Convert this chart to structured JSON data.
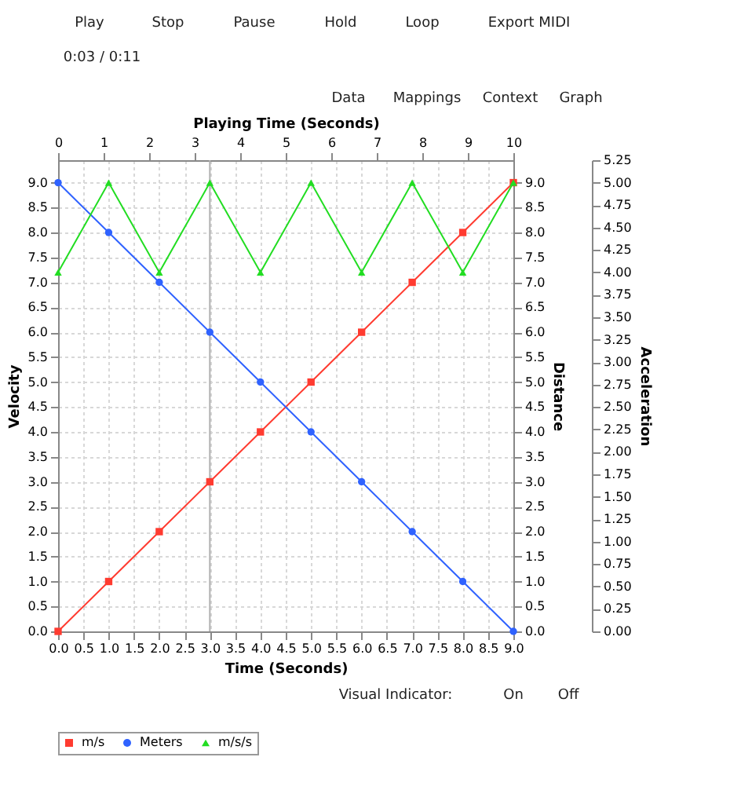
{
  "chart_data": {
    "type": "line",
    "xlabel": "Time (Seconds)",
    "x2label": "Playing Time (Seconds)",
    "ylabel": "Velocity",
    "y2label": "Distance",
    "y3label": "Acceleration",
    "x": [
      0,
      1,
      2,
      3,
      4,
      5,
      6,
      7,
      8,
      9
    ],
    "series": [
      {
        "name": "m/s",
        "color": "#ff3b30",
        "marker": "square",
        "values": [
          0,
          1,
          2,
          3,
          4,
          5,
          6,
          7,
          8,
          9
        ]
      },
      {
        "name": "Meters",
        "color": "#2f62ff",
        "marker": "circle",
        "axis": "y2",
        "values": [
          9,
          8,
          7,
          6,
          5,
          4,
          3,
          2,
          1,
          0
        ]
      },
      {
        "name": "m/s/s",
        "color": "#22dd22",
        "marker": "triangle",
        "axis": "y3",
        "values": [
          4,
          5,
          4,
          5,
          4,
          5,
          4,
          5,
          4,
          5
        ]
      }
    ],
    "xlim": [
      0,
      9
    ],
    "xticks": [
      {
        "value": 0,
        "label": "0.0"
      },
      {
        "value": 0.5,
        "label": "0.5"
      },
      {
        "value": 1,
        "label": "1.0"
      },
      {
        "value": 1.5,
        "label": "1.5"
      },
      {
        "value": 2,
        "label": "2.0"
      },
      {
        "value": 2.5,
        "label": "2.5"
      },
      {
        "value": 3,
        "label": "3.0"
      },
      {
        "value": 3.5,
        "label": "3.5"
      },
      {
        "value": 4,
        "label": "4.0"
      },
      {
        "value": 4.5,
        "label": "4.5"
      },
      {
        "value": 5,
        "label": "5.0"
      },
      {
        "value": 5.5,
        "label": "5.5"
      },
      {
        "value": 6,
        "label": "6.0"
      },
      {
        "value": 6.5,
        "label": "6.5"
      },
      {
        "value": 7,
        "label": "7.0"
      },
      {
        "value": 7.5,
        "label": "7.5"
      },
      {
        "value": 8,
        "label": "8.0"
      },
      {
        "value": 8.5,
        "label": "8.5"
      },
      {
        "value": 9,
        "label": "9.0"
      }
    ],
    "x2lim": [
      0,
      10
    ],
    "x2ticks": [
      0,
      1,
      2,
      3,
      4,
      5,
      6,
      7,
      8,
      9,
      10
    ],
    "ylim": [
      0,
      9.45
    ],
    "yticks": [
      {
        "value": 0,
        "label": "0.0"
      },
      {
        "value": 0.5,
        "label": "0.5"
      },
      {
        "value": 1,
        "label": "1.0"
      },
      {
        "value": 1.5,
        "label": "1.5"
      },
      {
        "value": 2,
        "label": "2.0"
      },
      {
        "value": 2.5,
        "label": "2.5"
      },
      {
        "value": 3,
        "label": "3.0"
      },
      {
        "value": 3.5,
        "label": "3.5"
      },
      {
        "value": 4,
        "label": "4.0"
      },
      {
        "value": 4.5,
        "label": "4.5"
      },
      {
        "value": 5,
        "label": "5.0"
      },
      {
        "value": 5.5,
        "label": "5.5"
      },
      {
        "value": 6,
        "label": "6.0"
      },
      {
        "value": 6.5,
        "label": "6.5"
      },
      {
        "value": 7,
        "label": "7.0"
      },
      {
        "value": 7.5,
        "label": "7.5"
      },
      {
        "value": 8,
        "label": "8.0"
      },
      {
        "value": 8.5,
        "label": "8.5"
      },
      {
        "value": 9,
        "label": "9.0"
      }
    ],
    "y2lim": [
      0,
      9.45
    ],
    "y2ticks": [
      {
        "value": 0,
        "label": "0.0"
      },
      {
        "value": 0.5,
        "label": "0.5"
      },
      {
        "value": 1,
        "label": "1.0"
      },
      {
        "value": 1.5,
        "label": "1.5"
      },
      {
        "value": 2,
        "label": "2.0"
      },
      {
        "value": 2.5,
        "label": "2.5"
      },
      {
        "value": 3,
        "label": "3.0"
      },
      {
        "value": 3.5,
        "label": "3.5"
      },
      {
        "value": 4,
        "label": "4.0"
      },
      {
        "value": 4.5,
        "label": "4.5"
      },
      {
        "value": 5,
        "label": "5.0"
      },
      {
        "value": 5.5,
        "label": "5.5"
      },
      {
        "value": 6,
        "label": "6.0"
      },
      {
        "value": 6.5,
        "label": "6.5"
      },
      {
        "value": 7,
        "label": "7.0"
      },
      {
        "value": 7.5,
        "label": "7.5"
      },
      {
        "value": 8,
        "label": "8.0"
      },
      {
        "value": 8.5,
        "label": "8.5"
      },
      {
        "value": 9,
        "label": "9.0"
      }
    ],
    "y3lim": [
      0,
      5.25
    ],
    "y3ticks": [
      {
        "value": 0,
        "label": "0.00"
      },
      {
        "value": 0.25,
        "label": "0.25"
      },
      {
        "value": 0.5,
        "label": "0.50"
      },
      {
        "value": 0.75,
        "label": "0.75"
      },
      {
        "value": 1,
        "label": "1.00"
      },
      {
        "value": 1.25,
        "label": "1.25"
      },
      {
        "value": 1.5,
        "label": "1.50"
      },
      {
        "value": 1.75,
        "label": "1.75"
      },
      {
        "value": 2,
        "label": "2.00"
      },
      {
        "value": 2.25,
        "label": "2.25"
      },
      {
        "value": 2.5,
        "label": "2.50"
      },
      {
        "value": 2.75,
        "label": "2.75"
      },
      {
        "value": 3,
        "label": "3.00"
      },
      {
        "value": 3.25,
        "label": "3.25"
      },
      {
        "value": 3.5,
        "label": "3.50"
      },
      {
        "value": 3.75,
        "label": "3.75"
      },
      {
        "value": 4,
        "label": "4.00"
      },
      {
        "value": 4.25,
        "label": "4.25"
      },
      {
        "value": 4.5,
        "label": "4.50"
      },
      {
        "value": 4.75,
        "label": "4.75"
      },
      {
        "value": 5,
        "label": "5.00"
      },
      {
        "value": 5.25,
        "label": "5.25"
      }
    ],
    "ref_lines": [
      {
        "axis": "x",
        "value": 3,
        "color": "#b0b0b0"
      }
    ],
    "grid": true,
    "legend": "bottom",
    "line_style": "solid",
    "annotations": [
      "Play",
      "Stop",
      "Pause",
      "Hold",
      "Loop",
      "Export MIDI",
      "0:03 / 0:11",
      "Data",
      "Mappings",
      "Context",
      "Graph",
      "Visual Indicator:",
      "On",
      "Off"
    ]
  }
}
